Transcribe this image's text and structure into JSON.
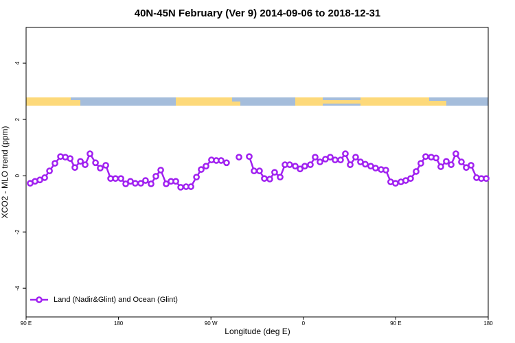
{
  "chart_data": {
    "type": "line",
    "title": "40N-45N February (Ver 9)   2014-09-06 to 2018-12-31",
    "x_label": "Longitude (deg E)",
    "y_label": "XCO2 - MLO trend (ppm)",
    "xlim": [
      90,
      540
    ],
    "ylim": [
      -5.02,
      5.27
    ],
    "xticks": [
      {
        "value": 90,
        "label": "90 E"
      },
      180,
      {
        "value": 270,
        "label": "90 W"
      },
      {
        "value": 360,
        "label": "0"
      },
      {
        "value": 450,
        "label": "90 E"
      },
      {
        "value": 540,
        "label": "180"
      }
    ],
    "yticks": [
      -4,
      -2,
      0,
      2,
      4
    ],
    "legend": "bottom-left",
    "x": [
      94.0,
      98.7,
      103.4,
      108.1,
      112.8,
      118.1,
      123.5,
      128.2,
      132.9,
      137.5,
      142.9,
      147.5,
      152.2,
      157.6,
      162.2,
      167.6,
      172.3,
      177.0,
      182.3,
      187.0,
      191.6,
      196.3,
      201.7,
      206.3,
      211.7,
      216.4,
      221.1,
      226.4,
      231.1,
      235.8,
      240.5,
      245.8,
      250.5,
      255.9,
      260.5,
      265.2,
      270.5,
      275.2,
      279.9,
      285.2,
      291.2,
      297.3,
      302.0,
      307.3,
      312.0,
      317.3,
      322.0,
      327.3,
      332.0,
      337.4,
      342.1,
      346.7,
      352.1,
      356.8,
      361.4,
      366.8,
      371.5,
      376.2,
      381.5,
      386.2,
      390.9,
      396.2,
      400.9,
      405.6,
      410.9,
      415.6,
      420.3,
      425.6,
      430.3,
      435.7,
      440.3,
      445.0,
      449.7,
      455.0,
      459.7,
      464.4,
      469.8,
      474.4,
      479.1,
      484.5,
      489.2,
      493.8,
      499.2,
      503.9,
      508.5,
      513.9,
      518.6,
      523.3,
      528.6,
      533.3,
      538.0
    ],
    "series": [
      {
        "name": "Land (Nadir&Glint) and Ocean (Glint)",
        "color": "#a020f0",
        "values": [
          -0.27,
          -0.2,
          -0.15,
          -0.07,
          0.17,
          0.44,
          0.68,
          0.66,
          0.61,
          0.29,
          0.51,
          0.39,
          0.78,
          0.46,
          0.27,
          0.37,
          -0.1,
          -0.1,
          -0.1,
          -0.29,
          -0.2,
          -0.27,
          -0.27,
          -0.17,
          -0.29,
          -0.02,
          0.2,
          -0.29,
          -0.2,
          -0.2,
          -0.41,
          -0.39,
          -0.39,
          -0.05,
          0.22,
          0.34,
          0.56,
          0.54,
          0.54,
          0.46,
          null,
          0.66,
          null,
          0.68,
          0.17,
          0.17,
          -0.1,
          -0.12,
          0.12,
          -0.05,
          0.39,
          0.39,
          0.34,
          0.24,
          0.34,
          0.39,
          0.66,
          0.49,
          0.59,
          0.66,
          0.56,
          0.56,
          0.78,
          0.39,
          0.66,
          0.49,
          0.41,
          0.34,
          0.27,
          0.22,
          0.2,
          -0.22,
          -0.27,
          -0.22,
          -0.17,
          -0.1,
          0.15,
          0.44,
          0.68,
          0.66,
          0.63,
          0.32,
          0.51,
          0.39,
          0.78,
          0.49,
          0.29,
          0.37,
          -0.07,
          -0.1,
          -0.1
        ]
      }
    ]
  }
}
